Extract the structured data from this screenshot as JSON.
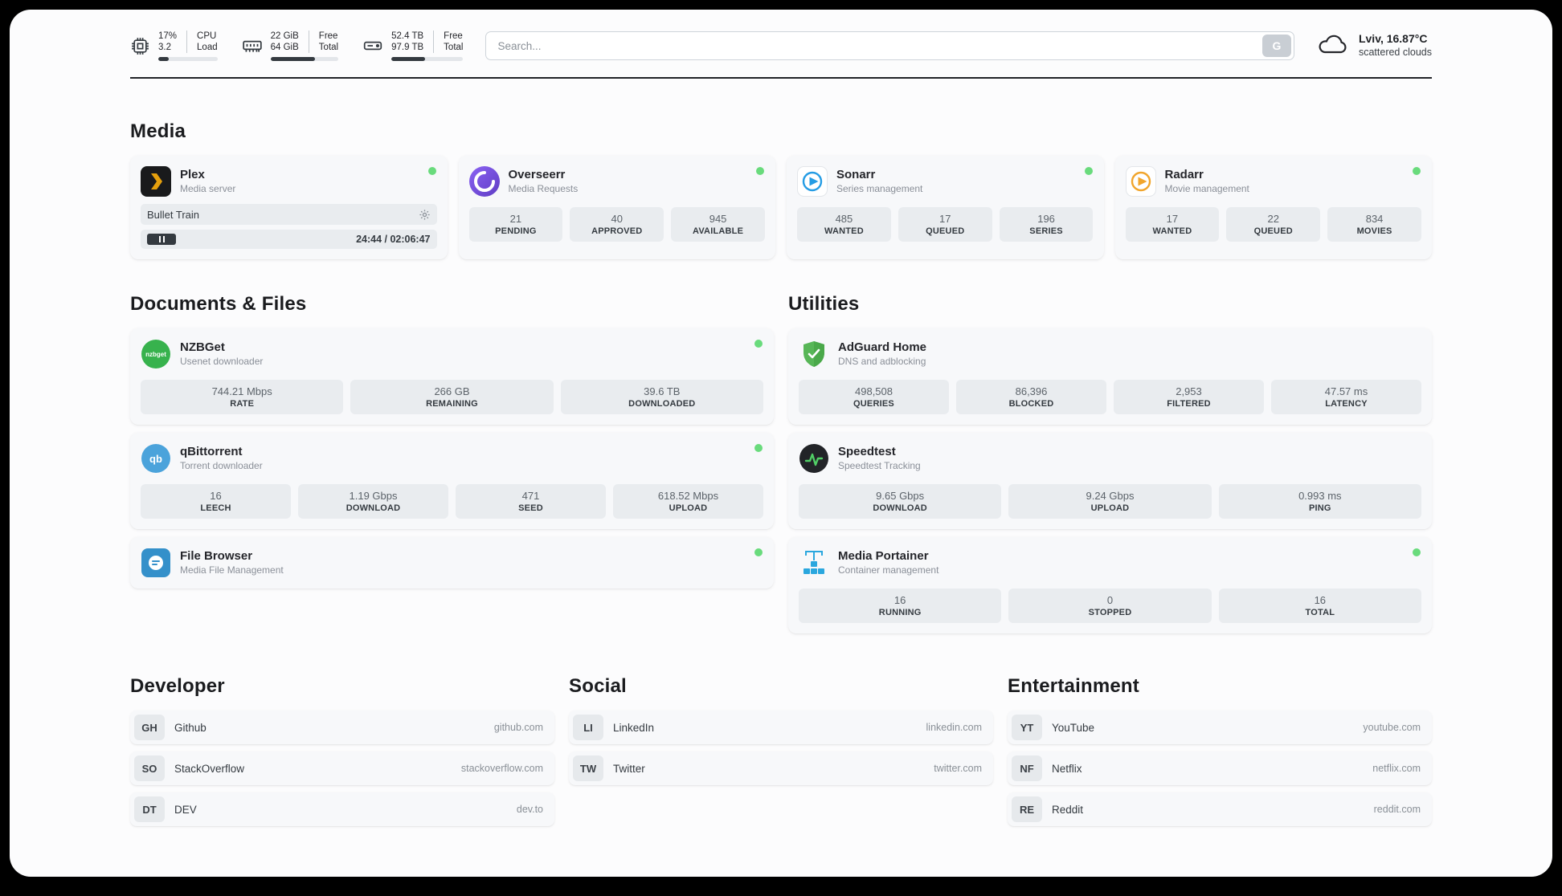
{
  "colors": {
    "status_online": "#69db7c",
    "plex_accent": "#e5a00d",
    "overseerr_accent": "#6f4bd8",
    "sonarr_accent": "#259ce4",
    "radarr_accent": "#f1a52c",
    "nzbget_accent": "#37b24d",
    "qbittorrent_accent": "#4ba3db",
    "filebrowser_accent": "#3490ca",
    "adguard_accent": "#57b657",
    "speedtest_accent": "#51cf66",
    "portainer_accent": "#2aa7de"
  },
  "topbar": {
    "cpu": {
      "value_top": "17%",
      "value_bottom": "3.2",
      "label_top": "CPU",
      "label_bottom": "Load",
      "progress": 17
    },
    "ram": {
      "value_top": "22 GiB",
      "value_bottom": "64 GiB",
      "label_top": "Free",
      "label_bottom": "Total",
      "progress": 66
    },
    "disk": {
      "value_top": "52.4 TB",
      "value_bottom": "97.9 TB",
      "label_top": "Free",
      "label_bottom": "Total",
      "progress": 47
    },
    "search": {
      "placeholder": "Search...",
      "button_label": "G"
    },
    "weather": {
      "location": "Lviv, 16.87°C",
      "condition": "scattered clouds"
    }
  },
  "media": {
    "title": "Media",
    "plex": {
      "name": "Plex",
      "subtitle": "Media server",
      "now_playing": "Bullet Train",
      "time": "24:44 / 02:06:47"
    },
    "overseerr": {
      "name": "Overseerr",
      "subtitle": "Media Requests",
      "stats": [
        {
          "value": "21",
          "label": "PENDING"
        },
        {
          "value": "40",
          "label": "APPROVED"
        },
        {
          "value": "945",
          "label": "AVAILABLE"
        }
      ]
    },
    "sonarr": {
      "name": "Sonarr",
      "subtitle": "Series management",
      "stats": [
        {
          "value": "485",
          "label": "WANTED"
        },
        {
          "value": "17",
          "label": "QUEUED"
        },
        {
          "value": "196",
          "label": "SERIES"
        }
      ]
    },
    "radarr": {
      "name": "Radarr",
      "subtitle": "Movie management",
      "stats": [
        {
          "value": "17",
          "label": "WANTED"
        },
        {
          "value": "22",
          "label": "QUEUED"
        },
        {
          "value": "834",
          "label": "MOVIES"
        }
      ]
    }
  },
  "documents": {
    "title": "Documents & Files",
    "nzbget": {
      "name": "NZBGet",
      "subtitle": "Usenet downloader",
      "icon_text": "nzbget",
      "stats": [
        {
          "value": "744.21 Mbps",
          "label": "RATE"
        },
        {
          "value": "266 GB",
          "label": "REMAINING"
        },
        {
          "value": "39.6 TB",
          "label": "DOWNLOADED"
        }
      ]
    },
    "qbittorrent": {
      "name": "qBittorrent",
      "subtitle": "Torrent downloader",
      "icon_text": "qb",
      "stats": [
        {
          "value": "16",
          "label": "LEECH"
        },
        {
          "value": "1.19 Gbps",
          "label": "DOWNLOAD"
        },
        {
          "value": "471",
          "label": "SEED"
        },
        {
          "value": "618.52 Mbps",
          "label": "UPLOAD"
        }
      ]
    },
    "filebrowser": {
      "name": "File Browser",
      "subtitle": "Media File Management"
    }
  },
  "utilities": {
    "title": "Utilities",
    "adguard": {
      "name": "AdGuard Home",
      "subtitle": "DNS and adblocking",
      "stats": [
        {
          "value": "498,508",
          "label": "QUERIES"
        },
        {
          "value": "86,396",
          "label": "BLOCKED"
        },
        {
          "value": "2,953",
          "label": "FILTERED"
        },
        {
          "value": "47.57 ms",
          "label": "LATENCY"
        }
      ]
    },
    "speedtest": {
      "name": "Speedtest",
      "subtitle": "Speedtest Tracking",
      "stats": [
        {
          "value": "9.65 Gbps",
          "label": "DOWNLOAD"
        },
        {
          "value": "9.24 Gbps",
          "label": "UPLOAD"
        },
        {
          "value": "0.993 ms",
          "label": "PING"
        }
      ]
    },
    "portainer": {
      "name": "Media Portainer",
      "subtitle": "Container management",
      "stats": [
        {
          "value": "16",
          "label": "RUNNING"
        },
        {
          "value": "0",
          "label": "STOPPED"
        },
        {
          "value": "16",
          "label": "TOTAL"
        }
      ]
    }
  },
  "bookmarks": [
    {
      "title": "Developer",
      "items": [
        {
          "badge": "GH",
          "name": "Github",
          "domain": "github.com"
        },
        {
          "badge": "SO",
          "name": "StackOverflow",
          "domain": "stackoverflow.com"
        },
        {
          "badge": "DT",
          "name": "DEV",
          "domain": "dev.to"
        }
      ]
    },
    {
      "title": "Social",
      "items": [
        {
          "badge": "LI",
          "name": "LinkedIn",
          "domain": "linkedin.com"
        },
        {
          "badge": "TW",
          "name": "Twitter",
          "domain": "twitter.com"
        }
      ]
    },
    {
      "title": "Entertainment",
      "items": [
        {
          "badge": "YT",
          "name": "YouTube",
          "domain": "youtube.com"
        },
        {
          "badge": "NF",
          "name": "Netflix",
          "domain": "netflix.com"
        },
        {
          "badge": "RE",
          "name": "Reddit",
          "domain": "reddit.com"
        }
      ]
    }
  ]
}
